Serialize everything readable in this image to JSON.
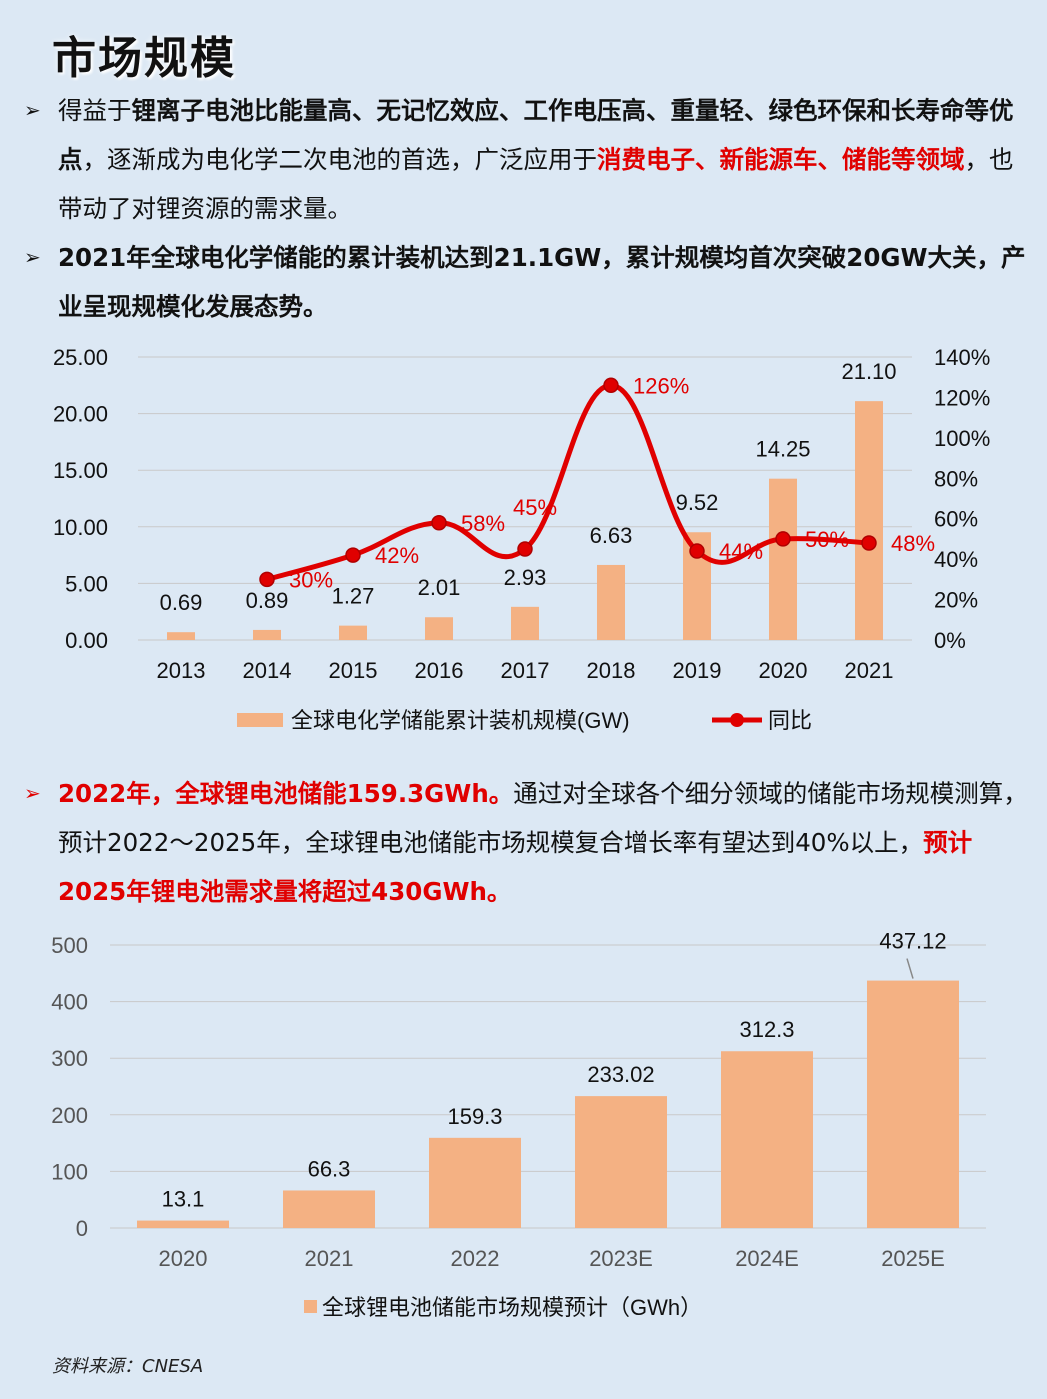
{
  "page": {
    "title": "市场规模",
    "source": "资料来源：CNESA"
  },
  "bullets": [
    {
      "marker": "➢",
      "parts": [
        {
          "text": "得益于",
          "style": "normal"
        },
        {
          "text": "锂离子电池比能量高、无记忆效应、工作电压高、重量轻、绿色环保和长寿命等优点",
          "style": "bold"
        },
        {
          "text": "，逐渐成为电化学二次电池的首选，广泛应用于",
          "style": "normal"
        },
        {
          "text": "消费电子、新能源车、储能等领域",
          "style": "red"
        },
        {
          "text": "，也带动了对锂资源的需求量。",
          "style": "normal"
        }
      ]
    },
    {
      "marker": "➢",
      "parts": [
        {
          "text": "2021年全球电化学储能的累计装机达到21.1GW，累计规模均首次突破20GW大关，产业呈现规模化发展态势。",
          "style": "bold"
        }
      ]
    },
    {
      "marker": "➢",
      "parts": [
        {
          "text": "2022年，全球锂电池储能159.3GWh。",
          "style": "red"
        },
        {
          "text": "通过对全球各个细分领域的储能市场规模测算，预计2022～2025年，全球锂电池储能市场规模复合增长率有望达到40%以上，",
          "style": "normal"
        },
        {
          "text": "预计2025年锂电池需求量将超过430GWh。",
          "style": "red"
        }
      ]
    }
  ],
  "chart_data": [
    {
      "type": "bar+line",
      "categories": [
        "2013",
        "2014",
        "2015",
        "2016",
        "2017",
        "2018",
        "2019",
        "2020",
        "2021"
      ],
      "series": [
        {
          "name": "全球电化学储能累计装机规模(GW)",
          "type": "bar",
          "axis": "left",
          "values": [
            0.69,
            0.89,
            1.27,
            2.01,
            2.93,
            6.63,
            9.52,
            14.25,
            21.1
          ],
          "labels": [
            "0.69",
            "0.89",
            "1.27",
            "2.01",
            "2.93",
            "6.63",
            "9.52",
            "14.25",
            "21.10"
          ],
          "color": "#f4b183"
        },
        {
          "name": "同比",
          "type": "line",
          "axis": "right",
          "values": [
            null,
            30,
            42,
            58,
            45,
            126,
            44,
            50,
            48
          ],
          "labels": [
            "",
            "30%",
            "42%",
            "58%",
            "45%",
            "126%",
            "44%",
            "50%",
            "48%"
          ],
          "color": "#e00000"
        }
      ],
      "ylim": [
        0,
        25
      ],
      "yticks": [
        "0.00",
        "5.00",
        "10.00",
        "15.00",
        "20.00",
        "25.00"
      ],
      "y2lim": [
        0,
        140
      ],
      "y2ticks": [
        "0%",
        "20%",
        "40%",
        "60%",
        "80%",
        "100%",
        "120%",
        "140%"
      ],
      "grid": true,
      "legend": "bottom"
    },
    {
      "type": "bar",
      "categories": [
        "2020",
        "2021",
        "2022",
        "2023E",
        "2024E",
        "2025E"
      ],
      "values": [
        13.1,
        66.3,
        159.3,
        233.02,
        312.3,
        437.12
      ],
      "labels": [
        "13.1",
        "66.3",
        "159.3",
        "233.02",
        "312.3",
        "437.12"
      ],
      "series_name": "全球锂电池储能市场规模预计（GWh）",
      "ylim": [
        0,
        500
      ],
      "yticks": [
        "0",
        "100",
        "200",
        "300",
        "400",
        "500"
      ],
      "color": "#f4b183",
      "grid": true,
      "legend": "bottom"
    }
  ]
}
